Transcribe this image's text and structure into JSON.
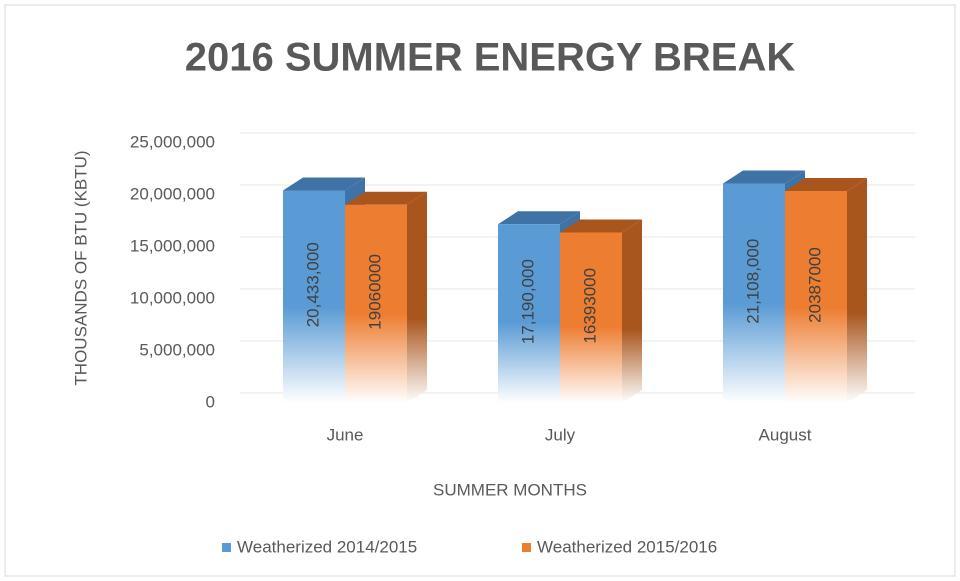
{
  "chart_data": {
    "type": "bar3d",
    "title": "2016 SUMMER ENERGY BREAK",
    "x_label": "SUMMER MONTHS",
    "y_label": "THOUSANDS OF BTU (KBTU)",
    "categories": [
      "June",
      "July",
      "August"
    ],
    "series": [
      {
        "name": "Weatherized 2014/2015",
        "color": "#5b9bd5",
        "side_color": "#3f73a6",
        "values": [
          20433000,
          17190000,
          21108000
        ],
        "value_labels": [
          "20,433,000",
          "17,190,000",
          "21,108,000"
        ]
      },
      {
        "name": "Weatherized 2015/2016",
        "color": "#ed7d31",
        "side_color": "#a9561e",
        "values": [
          19060000,
          16393000,
          20387000
        ]
      }
    ],
    "ylim": [
      0,
      25000000
    ],
    "yticks": [
      0,
      {
        "value": 5000000,
        "label": "5,000,000"
      },
      {
        "value": 10000000,
        "label": "10,000,000"
      },
      {
        "value": 15000000,
        "label": "15,000,000"
      },
      {
        "value": 20000000,
        "label": "20,000,000"
      },
      {
        "value": 25000000,
        "label": "25,000,000"
      }
    ],
    "grid": true,
    "legend": "bottom"
  }
}
